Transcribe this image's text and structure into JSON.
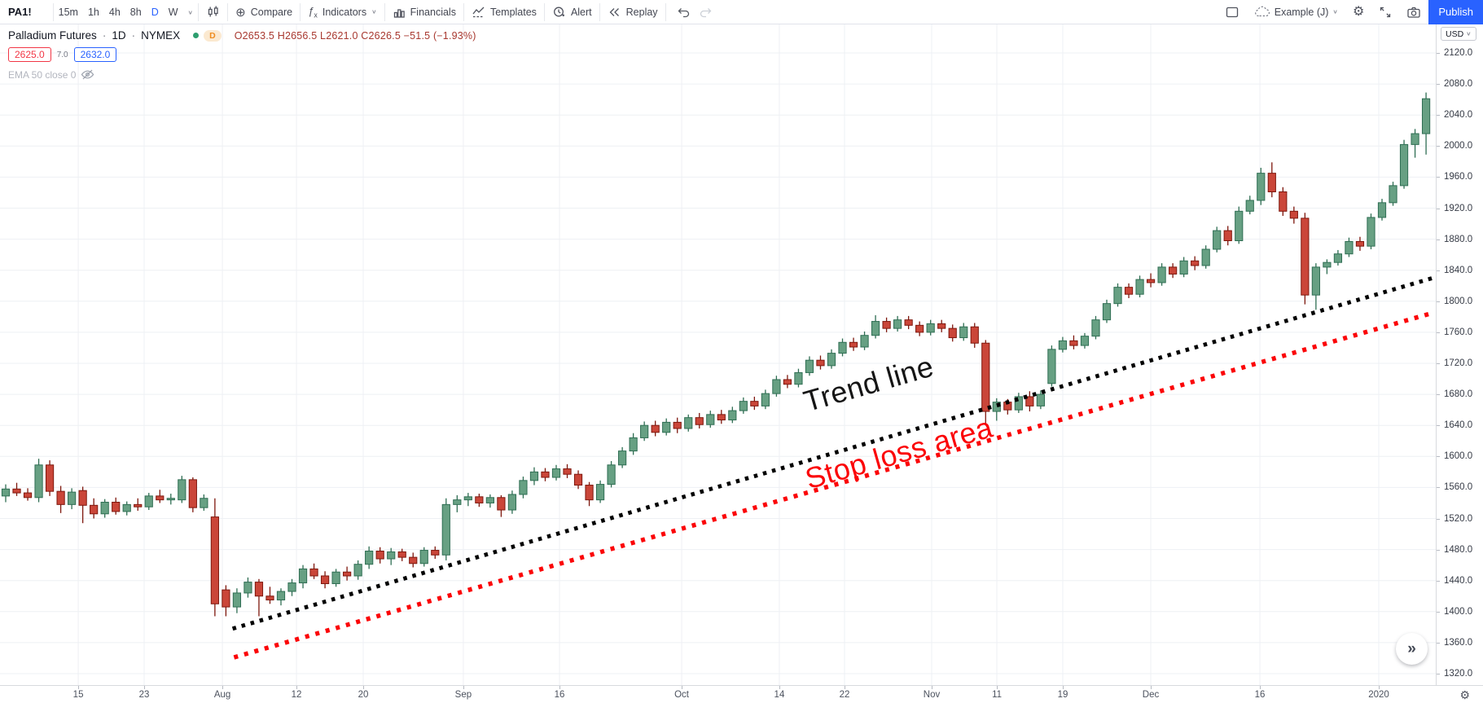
{
  "toolbar": {
    "symbol": "PA1!",
    "timeframes": [
      "15m",
      "1h",
      "4h",
      "8h",
      "D",
      "W"
    ],
    "active_timeframe": "D",
    "compare_label": "Compare",
    "indicators_label": "Indicators",
    "financials_label": "Financials",
    "templates_label": "Templates",
    "alert_label": "Alert",
    "replay_label": "Replay",
    "account_label": "Example (J)",
    "publish_label": "Publish"
  },
  "icons": {
    "chevron_down": "∨",
    "compare_plus": "⊕",
    "fx_f": "ƒ",
    "fx_x": "x",
    "gear": "⚙",
    "more": "»",
    "dot_sep": "·"
  },
  "legend": {
    "title": "Palladium Futures",
    "interval": "1D",
    "exchange": "NYMEX",
    "delay_badge": "D",
    "ohlc_text": "O2653.5 H2656.5 L2621.0 C2626.5 −51.5 (−1.93%)",
    "bid": "2625.0",
    "spread": "7.0",
    "ask": "2632.0",
    "indicator_label": "EMA 50 close 0"
  },
  "price_axis": {
    "currency": "USD",
    "labels": [
      "2120.0",
      "2080.0",
      "2040.0",
      "2000.0",
      "1960.0",
      "1920.0",
      "1880.0",
      "1840.0",
      "1800.0",
      "1760.0",
      "1720.0",
      "1680.0",
      "1640.0",
      "1600.0",
      "1560.0",
      "1520.0",
      "1480.0",
      "1440.0",
      "1400.0",
      "1360.0",
      "1320.0"
    ]
  },
  "time_axis": {
    "ticks": [
      {
        "label": "15",
        "x_pct": 5.45
      },
      {
        "label": "23",
        "x_pct": 10.04
      },
      {
        "label": "Aug",
        "x_pct": 15.49
      },
      {
        "label": "12",
        "x_pct": 20.65
      },
      {
        "label": "20",
        "x_pct": 25.3
      },
      {
        "label": "Sep",
        "x_pct": 32.27
      },
      {
        "label": "16",
        "x_pct": 38.97
      },
      {
        "label": "Oct",
        "x_pct": 47.48
      },
      {
        "label": "14",
        "x_pct": 54.28
      },
      {
        "label": "22",
        "x_pct": 58.82
      },
      {
        "label": "Nov",
        "x_pct": 64.89
      },
      {
        "label": "11",
        "x_pct": 69.43
      },
      {
        "label": "19",
        "x_pct": 74.02
      },
      {
        "label": "Dec",
        "x_pct": 80.15
      },
      {
        "label": "16",
        "x_pct": 87.75
      },
      {
        "label": "2020",
        "x_pct": 96.03
      }
    ]
  },
  "annotations": {
    "trend_line_label": "Trend line",
    "stop_loss_label": "Stop loss area"
  },
  "chart_data": {
    "type": "candlestick",
    "title": "Palladium Futures 1D NYMEX",
    "ylabel": "USD",
    "ylim": [
      1320,
      2120
    ],
    "grid": true,
    "colors": {
      "up_fill": "#67a083",
      "up_stroke": "#2f6e53",
      "down_fill": "#ca4639",
      "down_stroke": "#7e170d",
      "grid": "#eef0f4"
    },
    "candles": [
      [
        1549,
        1564,
        1541,
        1558
      ],
      [
        1558,
        1566,
        1549,
        1553
      ],
      [
        1553,
        1559,
        1543,
        1547
      ],
      [
        1547,
        1597,
        1541,
        1589
      ],
      [
        1589,
        1595,
        1549,
        1555
      ],
      [
        1555,
        1562,
        1527,
        1538
      ],
      [
        1538,
        1559,
        1532,
        1554
      ],
      [
        1556,
        1561,
        1514,
        1537
      ],
      [
        1537,
        1546,
        1520,
        1526
      ],
      [
        1526,
        1545,
        1521,
        1541
      ],
      [
        1541,
        1547,
        1525,
        1529
      ],
      [
        1529,
        1542,
        1524,
        1538
      ],
      [
        1538,
        1546,
        1530,
        1535
      ],
      [
        1535,
        1553,
        1531,
        1549
      ],
      [
        1549,
        1557,
        1540,
        1544
      ],
      [
        1544,
        1552,
        1538,
        1546
      ],
      [
        1544,
        1575,
        1540,
        1570
      ],
      [
        1570,
        1573,
        1528,
        1534
      ],
      [
        1534,
        1551,
        1530,
        1546
      ],
      [
        1522,
        1546,
        1394,
        1410
      ],
      [
        1428,
        1434,
        1394,
        1406
      ],
      [
        1406,
        1430,
        1398,
        1424
      ],
      [
        1424,
        1444,
        1418,
        1438
      ],
      [
        1438,
        1442,
        1394,
        1420
      ],
      [
        1420,
        1432,
        1410,
        1415
      ],
      [
        1415,
        1430,
        1408,
        1426
      ],
      [
        1426,
        1442,
        1420,
        1437
      ],
      [
        1437,
        1460,
        1430,
        1455
      ],
      [
        1455,
        1462,
        1442,
        1446
      ],
      [
        1446,
        1452,
        1430,
        1436
      ],
      [
        1436,
        1455,
        1432,
        1451
      ],
      [
        1451,
        1458,
        1440,
        1446
      ],
      [
        1446,
        1466,
        1441,
        1461
      ],
      [
        1461,
        1484,
        1455,
        1478
      ],
      [
        1478,
        1483,
        1462,
        1468
      ],
      [
        1468,
        1482,
        1460,
        1477
      ],
      [
        1477,
        1481,
        1465,
        1470
      ],
      [
        1470,
        1476,
        1457,
        1462
      ],
      [
        1462,
        1483,
        1458,
        1479
      ],
      [
        1479,
        1484,
        1468,
        1473
      ],
      [
        1473,
        1546,
        1466,
        1538
      ],
      [
        1538,
        1550,
        1528,
        1544
      ],
      [
        1544,
        1553,
        1536,
        1548
      ],
      [
        1548,
        1552,
        1535,
        1540
      ],
      [
        1540,
        1551,
        1534,
        1547
      ],
      [
        1547,
        1550,
        1522,
        1531
      ],
      [
        1531,
        1556,
        1526,
        1551
      ],
      [
        1551,
        1574,
        1546,
        1569
      ],
      [
        1569,
        1586,
        1563,
        1580
      ],
      [
        1580,
        1585,
        1568,
        1573
      ],
      [
        1573,
        1589,
        1569,
        1584
      ],
      [
        1584,
        1590,
        1572,
        1577
      ],
      [
        1577,
        1582,
        1558,
        1563
      ],
      [
        1563,
        1567,
        1536,
        1544
      ],
      [
        1544,
        1569,
        1540,
        1564
      ],
      [
        1564,
        1594,
        1560,
        1589
      ],
      [
        1589,
        1612,
        1585,
        1607
      ],
      [
        1607,
        1630,
        1602,
        1624
      ],
      [
        1624,
        1645,
        1620,
        1640
      ],
      [
        1640,
        1646,
        1626,
        1631
      ],
      [
        1631,
        1649,
        1627,
        1644
      ],
      [
        1644,
        1650,
        1630,
        1636
      ],
      [
        1636,
        1654,
        1632,
        1650
      ],
      [
        1650,
        1656,
        1636,
        1641
      ],
      [
        1641,
        1659,
        1637,
        1654
      ],
      [
        1654,
        1660,
        1642,
        1647
      ],
      [
        1647,
        1664,
        1643,
        1659
      ],
      [
        1659,
        1676,
        1655,
        1671
      ],
      [
        1671,
        1677,
        1660,
        1665
      ],
      [
        1665,
        1686,
        1661,
        1681
      ],
      [
        1681,
        1704,
        1677,
        1699
      ],
      [
        1699,
        1705,
        1688,
        1693
      ],
      [
        1693,
        1713,
        1689,
        1708
      ],
      [
        1708,
        1729,
        1704,
        1724
      ],
      [
        1724,
        1730,
        1712,
        1717
      ],
      [
        1717,
        1738,
        1713,
        1733
      ],
      [
        1733,
        1752,
        1729,
        1747
      ],
      [
        1747,
        1753,
        1736,
        1741
      ],
      [
        1741,
        1761,
        1737,
        1756
      ],
      [
        1756,
        1782,
        1752,
        1774
      ],
      [
        1774,
        1779,
        1760,
        1765
      ],
      [
        1765,
        1781,
        1761,
        1776
      ],
      [
        1776,
        1781,
        1764,
        1769
      ],
      [
        1769,
        1774,
        1755,
        1760
      ],
      [
        1760,
        1776,
        1756,
        1771
      ],
      [
        1771,
        1776,
        1760,
        1765
      ],
      [
        1765,
        1770,
        1748,
        1753
      ],
      [
        1753,
        1772,
        1749,
        1767
      ],
      [
        1767,
        1772,
        1740,
        1746
      ],
      [
        1746,
        1750,
        1642,
        1658
      ],
      [
        1658,
        1675,
        1646,
        1670
      ],
      [
        1670,
        1674,
        1654,
        1660
      ],
      [
        1660,
        1682,
        1656,
        1677
      ],
      [
        1677,
        1684,
        1658,
        1665
      ],
      [
        1665,
        1685,
        1661,
        1680
      ],
      [
        1694,
        1743,
        1690,
        1738
      ],
      [
        1738,
        1754,
        1734,
        1749
      ],
      [
        1749,
        1756,
        1738,
        1743
      ],
      [
        1743,
        1759,
        1739,
        1755
      ],
      [
        1755,
        1781,
        1751,
        1776
      ],
      [
        1776,
        1802,
        1772,
        1797
      ],
      [
        1797,
        1823,
        1793,
        1818
      ],
      [
        1818,
        1823,
        1804,
        1809
      ],
      [
        1809,
        1833,
        1805,
        1828
      ],
      [
        1828,
        1836,
        1818,
        1824
      ],
      [
        1824,
        1849,
        1820,
        1844
      ],
      [
        1844,
        1849,
        1830,
        1835
      ],
      [
        1835,
        1857,
        1831,
        1852
      ],
      [
        1852,
        1858,
        1840,
        1846
      ],
      [
        1846,
        1872,
        1842,
        1867
      ],
      [
        1867,
        1896,
        1863,
        1891
      ],
      [
        1891,
        1897,
        1872,
        1878
      ],
      [
        1878,
        1922,
        1874,
        1916
      ],
      [
        1916,
        1936,
        1912,
        1930
      ],
      [
        1930,
        1972,
        1924,
        1965
      ],
      [
        1965,
        1979,
        1934,
        1941
      ],
      [
        1941,
        1947,
        1910,
        1916
      ],
      [
        1916,
        1922,
        1900,
        1907
      ],
      [
        1907,
        1914,
        1796,
        1808
      ],
      [
        1808,
        1849,
        1789,
        1844
      ],
      [
        1844,
        1854,
        1835,
        1850
      ],
      [
        1850,
        1866,
        1846,
        1861
      ],
      [
        1861,
        1882,
        1857,
        1877
      ],
      [
        1877,
        1883,
        1865,
        1871
      ],
      [
        1871,
        1913,
        1867,
        1908
      ],
      [
        1908,
        1932,
        1904,
        1927
      ],
      [
        1927,
        1954,
        1923,
        1949
      ],
      [
        1949,
        2008,
        1945,
        2002
      ],
      [
        2002,
        2022,
        1985,
        2016
      ],
      [
        2016,
        2069,
        1989,
        2061
      ]
    ],
    "trend_lines": [
      {
        "name": "trend-line",
        "color": "#000000",
        "x1_pct": 16.2,
        "price1": 1378,
        "x2_pct": 99.8,
        "price2": 1830,
        "width": 5,
        "dash": "4.5 7"
      },
      {
        "name": "stop-loss-line",
        "color": "#fb0407",
        "x1_pct": 16.3,
        "price1": 1341,
        "x2_pct": 99.6,
        "price2": 1784,
        "width": 5.5,
        "dash": "5 8"
      }
    ]
  }
}
